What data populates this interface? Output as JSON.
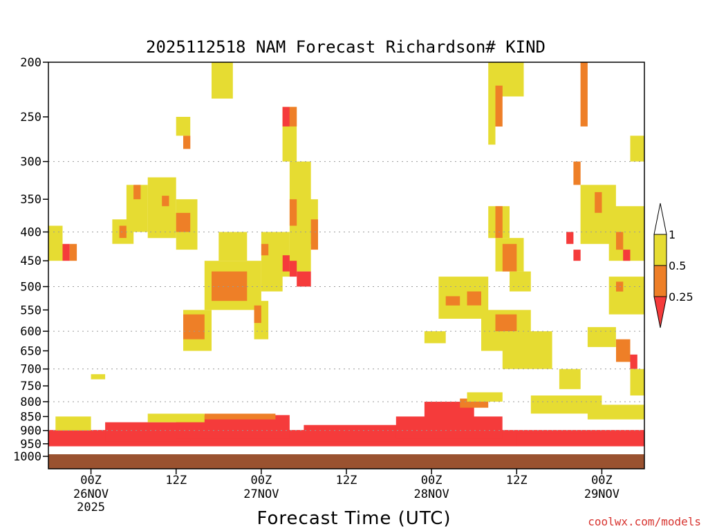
{
  "chart_data": {
    "type": "heatmap",
    "title": "2025112518 NAM Forecast Richardson# KIND",
    "xlabel": "Forecast Time (UTC)",
    "ylabel": "",
    "y_scale": "log-pressure",
    "ylim": [
      1000,
      200
    ],
    "y_ticks": [
      "200",
      "250",
      "300",
      "350",
      "400",
      "450",
      "500",
      "550",
      "600",
      "650",
      "700",
      "750",
      "800",
      "850",
      "900",
      "950",
      "1000"
    ],
    "x_range_hours": [
      -6,
      78
    ],
    "x_ticks": [
      {
        "hour": 0,
        "label": "00Z",
        "sub": "26NOV",
        "sub2": "2025"
      },
      {
        "hour": 12,
        "label": "12Z",
        "sub": "",
        "sub2": ""
      },
      {
        "hour": 24,
        "label": "00Z",
        "sub": "27NOV",
        "sub2": ""
      },
      {
        "hour": 36,
        "label": "12Z",
        "sub": "",
        "sub2": ""
      },
      {
        "hour": 48,
        "label": "00Z",
        "sub": "28NOV",
        "sub2": ""
      },
      {
        "hour": 60,
        "label": "12Z",
        "sub": "",
        "sub2": ""
      },
      {
        "hour": 72,
        "label": "00Z",
        "sub": "29NOV",
        "sub2": ""
      }
    ],
    "gridlines_y": [
      300,
      400,
      500,
      600,
      700,
      800,
      900
    ],
    "legend": {
      "placement": "right",
      "levels": [
        "0.25",
        "0.5",
        "1"
      ],
      "colors": [
        "#f53b3b",
        "#ee7f27",
        "#e6dc32"
      ]
    },
    "colors": {
      "low": "#f53b3b",
      "mid": "#ee7f27",
      "high": "#e6dc32",
      "ground": "#9a5230"
    },
    "regions": [
      {
        "cls": "low",
        "x0": -6,
        "x1": 78,
        "p0": 960,
        "p1": 898
      },
      {
        "cls": "low",
        "x0": 2,
        "x1": 14,
        "p0": 940,
        "p1": 870
      },
      {
        "cls": "low",
        "x0": 12,
        "x1": 28,
        "p0": 930,
        "p1": 845
      },
      {
        "cls": "mid",
        "x0": 16,
        "x1": 26,
        "p0": 860,
        "p1": 840
      },
      {
        "cls": "low",
        "x0": 30,
        "x1": 44,
        "p0": 940,
        "p1": 880
      },
      {
        "cls": "low",
        "x0": 43,
        "x1": 58,
        "p0": 930,
        "p1": 850
      },
      {
        "cls": "low",
        "x0": 47,
        "x1": 54,
        "p0": 850,
        "p1": 800
      },
      {
        "cls": "mid",
        "x0": 52,
        "x1": 56,
        "p0": 820,
        "p1": 790
      },
      {
        "cls": "low",
        "x0": 60,
        "x1": 72,
        "p0": 960,
        "p1": 910
      },
      {
        "cls": "high",
        "x0": -5,
        "x1": 0,
        "p0": 900,
        "p1": 850
      },
      {
        "cls": "high",
        "x0": 8,
        "x1": 16,
        "p0": 870,
        "p1": 840
      },
      {
        "cls": "high",
        "x0": 62,
        "x1": 72,
        "p0": 840,
        "p1": 780
      },
      {
        "cls": "high",
        "x0": 70,
        "x1": 78,
        "p0": 860,
        "p1": 810
      },
      {
        "cls": "high",
        "x0": 53,
        "x1": 58,
        "p0": 800,
        "p1": 770
      },
      {
        "cls": "high",
        "x0": 0,
        "x1": 2,
        "p0": 730,
        "p1": 715
      },
      {
        "cls": "high",
        "x0": 17,
        "x1": 20,
        "p0": 200,
        "p1": 232
      },
      {
        "cls": "high",
        "x0": 12,
        "x1": 14,
        "p0": 250,
        "p1": 270
      },
      {
        "cls": "mid",
        "x0": 13,
        "x1": 14,
        "p0": 270,
        "p1": 285
      },
      {
        "cls": "high",
        "x0": 8,
        "x1": 12,
        "p0": 320,
        "p1": 410
      },
      {
        "cls": "mid",
        "x0": 10,
        "x1": 11,
        "p0": 345,
        "p1": 360
      },
      {
        "cls": "high",
        "x0": 3,
        "x1": 6,
        "p0": 380,
        "p1": 420
      },
      {
        "cls": "mid",
        "x0": 4,
        "x1": 5,
        "p0": 390,
        "p1": 410
      },
      {
        "cls": "high",
        "x0": 5,
        "x1": 8,
        "p0": 330,
        "p1": 400
      },
      {
        "cls": "mid",
        "x0": 6,
        "x1": 7,
        "p0": 330,
        "p1": 350
      },
      {
        "cls": "high",
        "x0": 12,
        "x1": 15,
        "p0": 350,
        "p1": 430
      },
      {
        "cls": "mid",
        "x0": 12,
        "x1": 14,
        "p0": 370,
        "p1": 400
      },
      {
        "cls": "high",
        "x0": -6,
        "x1": -4,
        "p0": 390,
        "p1": 450
      },
      {
        "cls": "red",
        "x0": -4,
        "x1": -3,
        "p0": 420,
        "p1": 450
      },
      {
        "cls": "mid",
        "x0": -3,
        "x1": -2,
        "p0": 420,
        "p1": 450
      },
      {
        "cls": "high",
        "x0": 16,
        "x1": 24,
        "p0": 450,
        "p1": 550
      },
      {
        "cls": "mid",
        "x0": 17,
        "x1": 22,
        "p0": 470,
        "p1": 530
      },
      {
        "cls": "high",
        "x0": 13,
        "x1": 17,
        "p0": 550,
        "p1": 650
      },
      {
        "cls": "mid",
        "x0": 13,
        "x1": 16,
        "p0": 560,
        "p1": 620
      },
      {
        "cls": "high",
        "x0": 23,
        "x1": 25,
        "p0": 530,
        "p1": 620
      },
      {
        "cls": "mid",
        "x0": 23,
        "x1": 24,
        "p0": 540,
        "p1": 580
      },
      {
        "cls": "high",
        "x0": 18,
        "x1": 22,
        "p0": 400,
        "p1": 450
      },
      {
        "cls": "high",
        "x0": 27,
        "x1": 29,
        "p0": 240,
        "p1": 300
      },
      {
        "cls": "red",
        "x0": 27,
        "x1": 28,
        "p0": 240,
        "p1": 260
      },
      {
        "cls": "mid",
        "x0": 28,
        "x1": 29,
        "p0": 240,
        "p1": 260
      },
      {
        "cls": "high",
        "x0": 28,
        "x1": 31,
        "p0": 300,
        "p1": 470
      },
      {
        "cls": "mid",
        "x0": 28,
        "x1": 29,
        "p0": 350,
        "p1": 390
      },
      {
        "cls": "high",
        "x0": 30,
        "x1": 32,
        "p0": 350,
        "p1": 420
      },
      {
        "cls": "mid",
        "x0": 31,
        "x1": 32,
        "p0": 380,
        "p1": 430
      },
      {
        "cls": "high",
        "x0": 26,
        "x1": 28,
        "p0": 400,
        "p1": 480
      },
      {
        "cls": "red",
        "x0": 27,
        "x1": 28,
        "p0": 440,
        "p1": 470
      },
      {
        "cls": "red",
        "x0": 29,
        "x1": 31,
        "p0": 470,
        "p1": 500
      },
      {
        "cls": "red",
        "x0": 28,
        "x1": 29,
        "p0": 450,
        "p1": 480
      },
      {
        "cls": "high",
        "x0": 24,
        "x1": 27,
        "p0": 400,
        "p1": 510
      },
      {
        "cls": "mid",
        "x0": 24,
        "x1": 25,
        "p0": 420,
        "p1": 440
      },
      {
        "cls": "high",
        "x0": 49,
        "x1": 56,
        "p0": 480,
        "p1": 570
      },
      {
        "cls": "mid",
        "x0": 50,
        "x1": 52,
        "p0": 520,
        "p1": 540
      },
      {
        "cls": "mid",
        "x0": 53,
        "x1": 55,
        "p0": 510,
        "p1": 540
      },
      {
        "cls": "high",
        "x0": 47,
        "x1": 50,
        "p0": 600,
        "p1": 630
      },
      {
        "cls": "high",
        "x0": 55,
        "x1": 62,
        "p0": 550,
        "p1": 650
      },
      {
        "cls": "mid",
        "x0": 57,
        "x1": 60,
        "p0": 560,
        "p1": 600
      },
      {
        "cls": "high",
        "x0": 58,
        "x1": 65,
        "p0": 600,
        "p1": 700
      },
      {
        "cls": "high",
        "x0": 56,
        "x1": 59,
        "p0": 360,
        "p1": 410
      },
      {
        "cls": "mid",
        "x0": 57,
        "x1": 58,
        "p0": 360,
        "p1": 410
      },
      {
        "cls": "high",
        "x0": 57,
        "x1": 61,
        "p0": 410,
        "p1": 470
      },
      {
        "cls": "mid",
        "x0": 58,
        "x1": 60,
        "p0": 420,
        "p1": 470
      },
      {
        "cls": "high",
        "x0": 59,
        "x1": 62,
        "p0": 470,
        "p1": 510
      },
      {
        "cls": "high",
        "x0": 56,
        "x1": 61,
        "p0": 200,
        "p1": 230
      },
      {
        "cls": "mid",
        "x0": 57,
        "x1": 58,
        "p0": 220,
        "p1": 260
      },
      {
        "cls": "high",
        "x0": 56,
        "x1": 57,
        "p0": 230,
        "p1": 280
      },
      {
        "cls": "high",
        "x0": 69,
        "x1": 74,
        "p0": 330,
        "p1": 420
      },
      {
        "cls": "mid",
        "x0": 71,
        "x1": 72,
        "p0": 340,
        "p1": 370
      },
      {
        "cls": "high",
        "x0": 73,
        "x1": 78,
        "p0": 360,
        "p1": 450
      },
      {
        "cls": "mid",
        "x0": 74,
        "x1": 75,
        "p0": 400,
        "p1": 430
      },
      {
        "cls": "red",
        "x0": 75,
        "x1": 76,
        "p0": 430,
        "p1": 450
      },
      {
        "cls": "high",
        "x0": 76,
        "x1": 78,
        "p0": 270,
        "p1": 300
      },
      {
        "cls": "mid",
        "x0": 68,
        "x1": 69,
        "p0": 300,
        "p1": 330
      },
      {
        "cls": "red",
        "x0": 67,
        "x1": 68,
        "p0": 400,
        "p1": 420
      },
      {
        "cls": "red",
        "x0": 68,
        "x1": 69,
        "p0": 430,
        "p1": 450
      },
      {
        "cls": "high",
        "x0": 73,
        "x1": 78,
        "p0": 480,
        "p1": 560
      },
      {
        "cls": "mid",
        "x0": 74,
        "x1": 75,
        "p0": 490,
        "p1": 510
      },
      {
        "cls": "high",
        "x0": 70,
        "x1": 74,
        "p0": 590,
        "p1": 640
      },
      {
        "cls": "mid",
        "x0": 74,
        "x1": 76,
        "p0": 620,
        "p1": 680
      },
      {
        "cls": "red",
        "x0": 76,
        "x1": 77,
        "p0": 660,
        "p1": 700
      },
      {
        "cls": "high",
        "x0": 76,
        "x1": 78,
        "p0": 700,
        "p1": 780
      },
      {
        "cls": "high",
        "x0": 66,
        "x1": 69,
        "p0": 700,
        "p1": 760
      },
      {
        "cls": "mid",
        "x0": 69,
        "x1": 70,
        "p0": 200,
        "p1": 260
      }
    ]
  },
  "credit": "coolwx.com/models"
}
